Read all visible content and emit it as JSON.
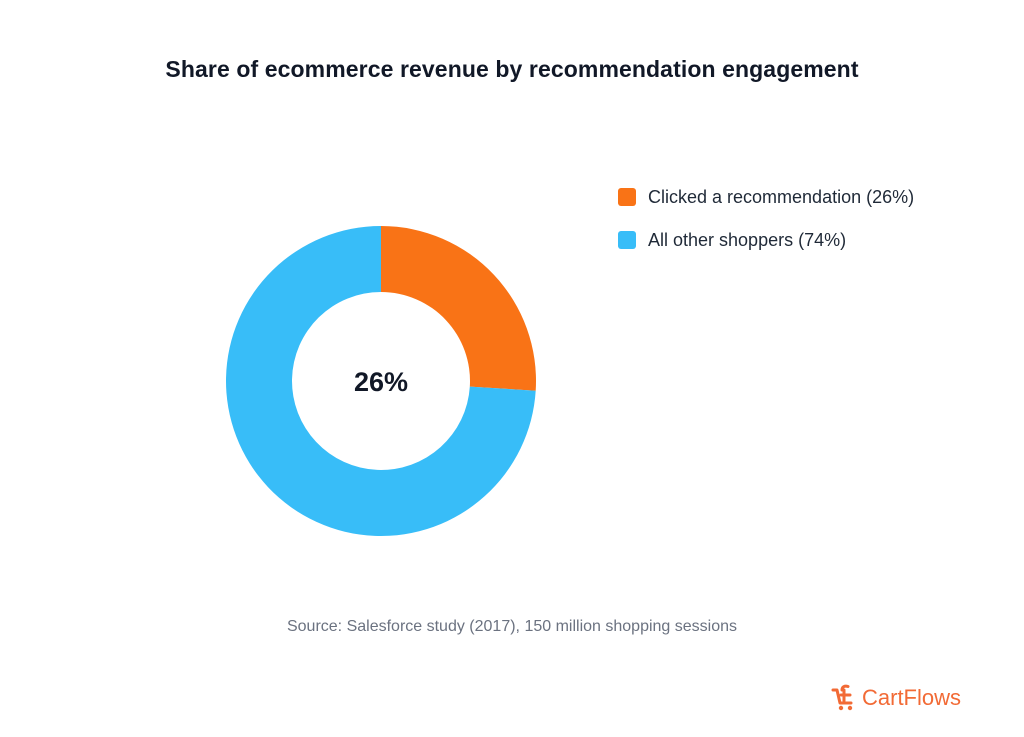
{
  "chart_data": {
    "type": "pie",
    "style": "donut",
    "title": "Share of ecommerce revenue by recommendation engagement",
    "center_label": "26%",
    "categories": [
      "Clicked a recommendation (26%)",
      "All other shoppers (74%)"
    ],
    "values": [
      26,
      74
    ],
    "colors": [
      "#f97316",
      "#38bdf8"
    ],
    "legend_position": "right"
  },
  "footer": {
    "source": "Source: Salesforce study (2017), 150 million shopping sessions"
  },
  "brand": {
    "name": "CartFlows",
    "color": "#f26a35",
    "logo_icon": "cartflows-logo-icon"
  }
}
